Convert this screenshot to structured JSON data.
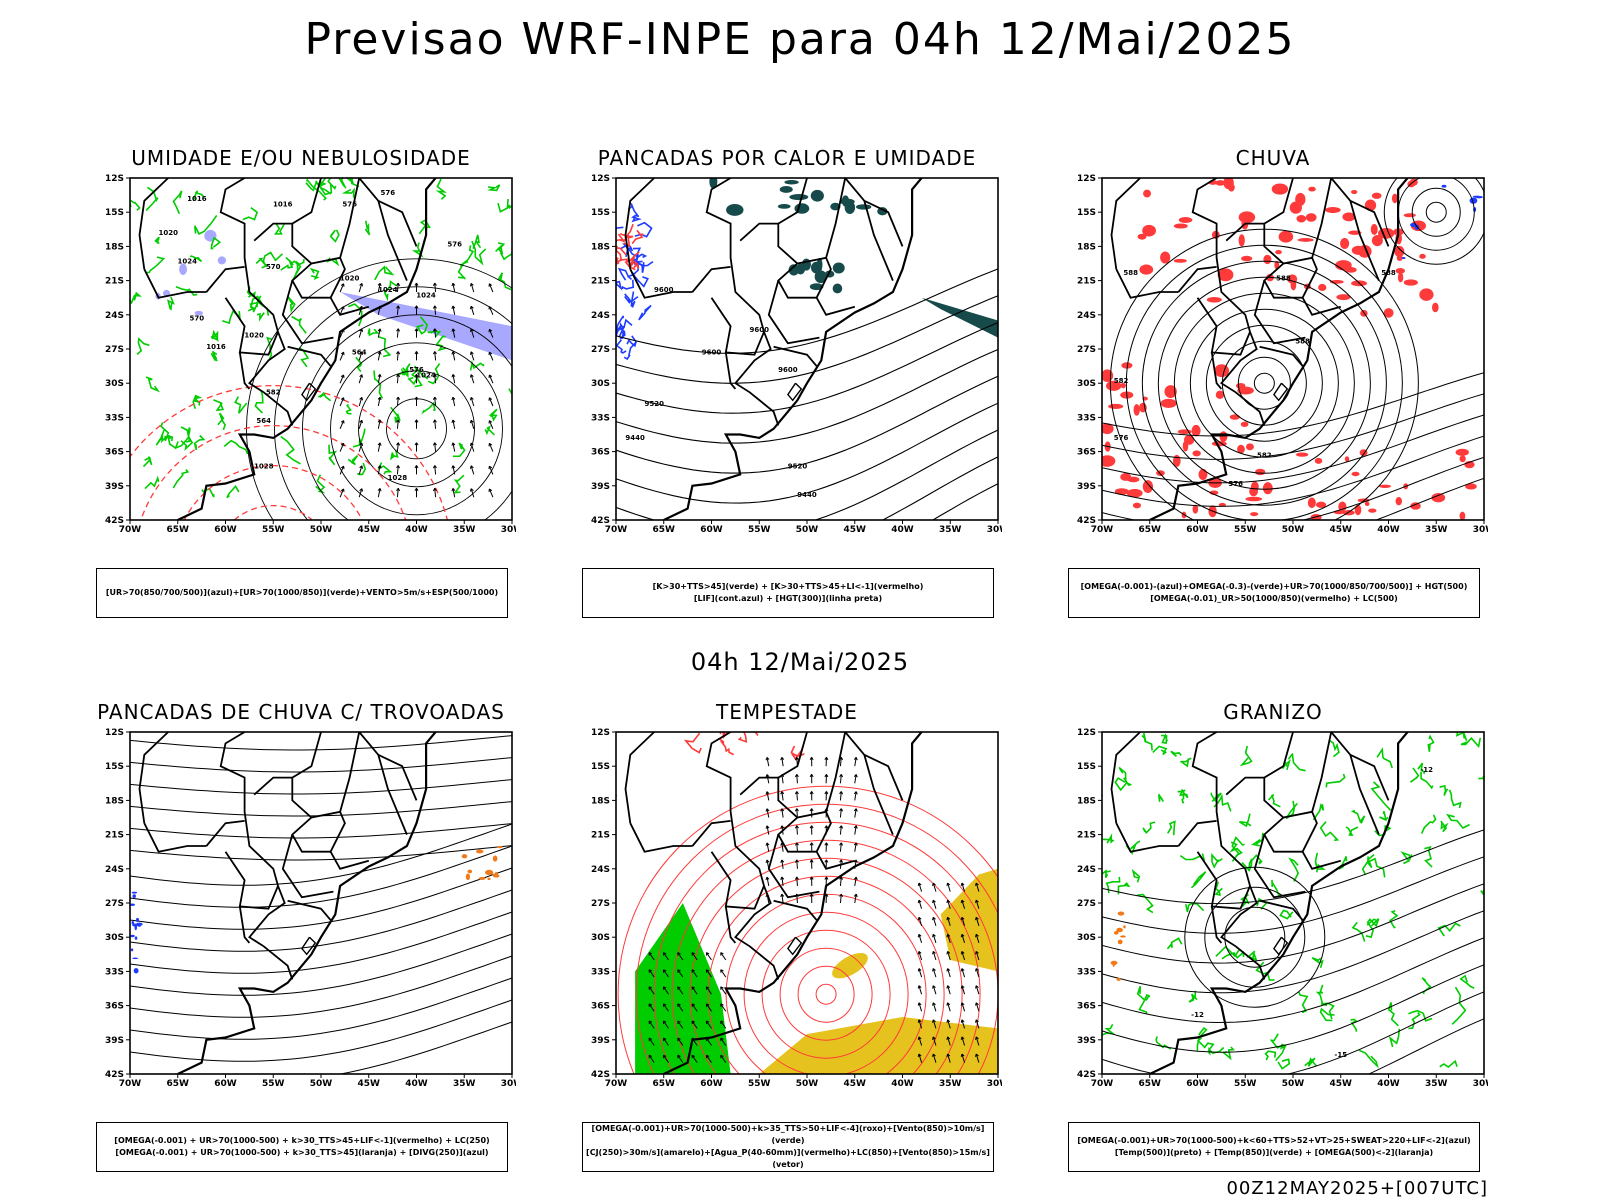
{
  "title": "Previsao WRF-INPE  para 04h 12/Mai/2025",
  "mid_title": "04h 12/Mai/2025",
  "footer": "00Z12MAY2025+[007UTC]",
  "axes": {
    "lat_labels": [
      "12S",
      "15S",
      "18S",
      "21S",
      "24S",
      "27S",
      "30S",
      "33S",
      "36S",
      "39S",
      "42S"
    ],
    "lon_labels": [
      "70W",
      "65W",
      "60W",
      "55W",
      "50W",
      "45W",
      "40W",
      "35W",
      "30W"
    ]
  },
  "panels": [
    {
      "title": "UMIDADE E/OU NEBULOSIDADE",
      "legend": [
        "[UR>70(850/700/500)](azul)+[UR>70(1000/850)](verde)+VENTO>5m/s+ESP(500/1000)"
      ],
      "contour_labels": [
        "1016",
        "1016",
        "1016",
        "1020",
        "1024",
        "1024",
        "1020",
        "1016",
        "1020",
        "1024",
        "1028",
        "1028",
        "1024",
        "576",
        "576",
        "570",
        "576",
        "570",
        "564",
        "564",
        "576",
        "582"
      ]
    },
    {
      "title": "PANCADAS POR CALOR E UMIDADE",
      "legend": [
        "[K>30+TTS>45](verde) + [K>30+TTS>45+LI<-1](vermelho)",
        "[LIF](cont.azul) + [HGT(300)](linha preta)"
      ],
      "contour_labels": [
        "9600",
        "9600",
        "9600",
        "9600",
        "9520",
        "9440",
        "9520",
        "9440"
      ]
    },
    {
      "title": "CHUVA",
      "legend": [
        "[OMEGA(-0.001)-(azul)+OMEGA(-0.3)-(verde)+UR>70(1000/850/700/500)] + HGT(500)",
        "[OMEGA(-0.01)_UR>50(1000/850)(vermelho) + LC(500)"
      ],
      "contour_labels": [
        "588",
        "588",
        "588",
        "588",
        "588",
        "582",
        "582",
        "576",
        "576"
      ]
    },
    {
      "title": "PANCADAS DE CHUVA C/ TROVOADAS",
      "legend": [
        "[OMEGA(-0.001) + UR>70(1000-500) + k>30_TTS>45+LIF<-1](vermelho) + LC(250)",
        "[OMEGA(-0.001) + UR>70(1000-500) + k>30_TTS>45](laranja) + [DIVG(250)](azul)"
      ],
      "contour_labels": []
    },
    {
      "title": "TEMPESTADE",
      "legend": [
        "[OMEGA(-0.001)+UR>70(1000-500)+k>35_TTS>50+LIF<-4](roxo)+[Vento(850)>10m/s](verde)",
        "[CJ(250)>30m/s](amarelo)+[Agua_P(40-60mm)](vermelho)+LC(850)+[Vento(850)>15m/s](vetor)"
      ],
      "contour_labels": []
    },
    {
      "title": "GRANIZO",
      "legend": [
        "[OMEGA(-0.001)+UR>70(1000-500)+k<60+TTS>52+VT>25+SWEAT>220+LIF<-2](azul)",
        "[Temp(500)](preto) + [Temp(850)](verde) + [OMEGA(500)<-2](laranja)"
      ],
      "contour_labels": [
        "-12",
        "-15",
        "-12"
      ]
    }
  ],
  "colors": {
    "red": "#ff3a3a",
    "green": "#00cc00",
    "blue": "#1e3cff",
    "lightblue": "#a8a8ff",
    "darkteal": "#174a4a",
    "orange": "#f07a1a",
    "yellow": "#e6c21e",
    "black": "#000000"
  }
}
